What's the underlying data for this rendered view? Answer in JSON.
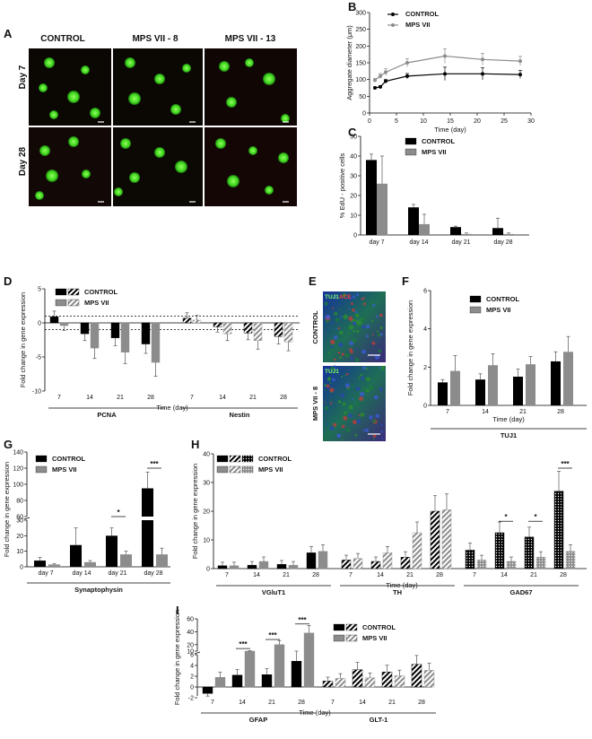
{
  "panels": {
    "A": {
      "label": "A",
      "columns": [
        "CONTROL",
        "MPS VII - 8",
        "MPS VII - 13"
      ],
      "rows": [
        "Day 7",
        "Day 28"
      ]
    },
    "B": {
      "label": "B"
    },
    "C": {
      "label": "C"
    },
    "D": {
      "label": "D"
    },
    "E": {
      "label": "E",
      "rows": [
        "CONTROL",
        "MPS VII - 8"
      ],
      "stain_tuj1": "TUJ1",
      "stain_red": "ACE"
    },
    "F": {
      "label": "F"
    },
    "G": {
      "label": "G"
    },
    "H": {
      "label": "H"
    },
    "I": {
      "label": "I"
    }
  },
  "colors": {
    "control": "#000000",
    "mps": "#8c8c8c",
    "error": "#555555"
  },
  "chart_data": [
    {
      "id": "B",
      "type": "line",
      "xlabel": "Time (day)",
      "ylabel": "Aggregate diameter (μm)",
      "xlim": [
        0,
        30
      ],
      "ylim": [
        0,
        300
      ],
      "xticks": [
        0,
        5,
        10,
        15,
        20,
        25,
        30
      ],
      "yticks": [
        0,
        50,
        100,
        150,
        200,
        250,
        300
      ],
      "series": [
        {
          "name": "CONTROL",
          "x": [
            1,
            2,
            3,
            7,
            14,
            21,
            28
          ],
          "y": [
            75,
            78,
            95,
            110,
            117,
            117,
            115
          ],
          "err": [
            3,
            3,
            5,
            8,
            20,
            18,
            12
          ]
        },
        {
          "name": "MPS VII",
          "x": [
            1,
            2,
            3,
            7,
            14,
            21,
            28
          ],
          "y": [
            98,
            110,
            122,
            150,
            170,
            160,
            155
          ],
          "err": [
            5,
            8,
            10,
            12,
            22,
            18,
            14
          ]
        }
      ]
    },
    {
      "id": "C",
      "type": "bar",
      "ylabel": "% EdU - positive cells",
      "categories": [
        "day 7",
        "day 14",
        "day 21",
        "day 28"
      ],
      "ylim": [
        0,
        50
      ],
      "yticks": [
        0,
        10,
        20,
        30,
        40,
        50
      ],
      "series": [
        {
          "name": "CONTROL",
          "values": [
            38,
            14,
            4,
            3.5
          ],
          "err": [
            3,
            1.5,
            0.5,
            5
          ]
        },
        {
          "name": "MPS VII",
          "values": [
            26,
            5.5,
            0.5,
            0.5
          ],
          "err": [
            14,
            5,
            0.5,
            0.5
          ]
        }
      ]
    },
    {
      "id": "D",
      "type": "bar",
      "ylabel": "Fold change in gene expression",
      "xlabel": "Time (day)",
      "groups": [
        "PCNA",
        "Nestin"
      ],
      "categories": [
        "7",
        "14",
        "21",
        "28"
      ],
      "ylim": [
        -10,
        5
      ],
      "yticks": [
        -10,
        -5,
        0,
        5
      ],
      "series": [
        {
          "name": "CONTROL",
          "PCNA": [
            0.9,
            -1.6,
            -2.2,
            -3.1
          ],
          "Nestin": [
            0.7,
            -0.6,
            -1.5,
            -2.0
          ]
        },
        {
          "name": "MPS VII",
          "PCNA": [
            -0.4,
            -3.7,
            -4.3,
            -5.8
          ],
          "Nestin": [
            0.4,
            -1.6,
            -2.6,
            -2.8
          ]
        }
      ]
    },
    {
      "id": "F",
      "type": "bar",
      "ylabel": "Fold change in gene expression",
      "xlabel": "Time (day)",
      "groups": [
        "TUJ1"
      ],
      "categories": [
        "7",
        "14",
        "21",
        "28"
      ],
      "ylim": [
        0,
        6
      ],
      "yticks": [
        0,
        2,
        4,
        6
      ],
      "series": [
        {
          "name": "CONTROL",
          "values": [
            1.2,
            1.35,
            1.5,
            2.3
          ],
          "err": [
            0.15,
            0.3,
            0.4,
            0.5
          ]
        },
        {
          "name": "MPS VII",
          "values": [
            1.8,
            2.1,
            2.15,
            2.8
          ],
          "err": [
            0.8,
            0.6,
            0.4,
            0.8
          ]
        }
      ]
    },
    {
      "id": "G",
      "type": "bar",
      "ylabel": "Fold change in gene expression",
      "xlabel": "Synaptophysin",
      "categories": [
        "day 7",
        "day 14",
        "day 21",
        "day 28"
      ],
      "ylim": [
        0,
        140
      ],
      "yticks": [
        0,
        10,
        20,
        30,
        40,
        60,
        80,
        100,
        120,
        140
      ],
      "axis_break": [
        30,
        60
      ],
      "series": [
        {
          "name": "CONTROL",
          "values": [
            4,
            14,
            20,
            95
          ],
          "err": [
            2,
            11,
            5,
            20
          ]
        },
        {
          "name": "MPS VII",
          "values": [
            1.5,
            3,
            8,
            8
          ],
          "err": [
            0.5,
            1,
            2,
            4
          ]
        }
      ],
      "significance": [
        "*",
        "***"
      ]
    },
    {
      "id": "H",
      "type": "bar",
      "ylabel": "Fold change in gene expression",
      "xlabel": "Time (day)",
      "groups": [
        "VGluT1",
        "TH",
        "GAD67"
      ],
      "categories": [
        "7",
        "14",
        "21",
        "28"
      ],
      "ylim": [
        0,
        40
      ],
      "yticks": [
        0,
        10,
        20,
        30,
        40
      ],
      "series": [
        {
          "name": "CONTROL",
          "VGluT1": [
            1,
            1.2,
            1.5,
            5.5
          ],
          "TH": [
            3,
            2.5,
            4,
            20
          ],
          "GAD67": [
            6.5,
            12.5,
            11,
            27
          ]
        },
        {
          "name": "MPS VII",
          "VGluT1": [
            1,
            2.5,
            1.2,
            6
          ],
          "TH": [
            3.5,
            5.5,
            12.5,
            20.5
          ],
          "GAD67": [
            3,
            2.5,
            4,
            6
          ]
        }
      ],
      "significance": [
        "*",
        "*",
        "***"
      ]
    },
    {
      "id": "I",
      "type": "bar",
      "ylabel": "Fold change in gene expression",
      "xlabel": "Time (day)",
      "groups": [
        "GFAP",
        "GLT-1"
      ],
      "categories": [
        "7",
        "14",
        "21",
        "28"
      ],
      "ylim": [
        -2,
        60
      ],
      "yticks": [
        -2,
        0,
        2,
        4,
        6,
        8,
        10,
        20,
        40,
        60
      ],
      "axis_break": [
        6,
        10
      ],
      "series": [
        {
          "name": "CONTROL",
          "GFAP": [
            -1.2,
            2.2,
            2.3,
            4.8
          ],
          "GLT-1": [
            1.1,
            3.2,
            2.8,
            4.2
          ]
        },
        {
          "name": "MPS VII",
          "GFAP": [
            1.8,
            8,
            20,
            38
          ],
          "GLT-1": [
            1.6,
            1.7,
            2.1,
            3.1
          ]
        }
      ],
      "significance": [
        "***",
        "***",
        "***"
      ]
    }
  ],
  "legend": {
    "control": "CONTROL",
    "mps": "MPS VII"
  }
}
